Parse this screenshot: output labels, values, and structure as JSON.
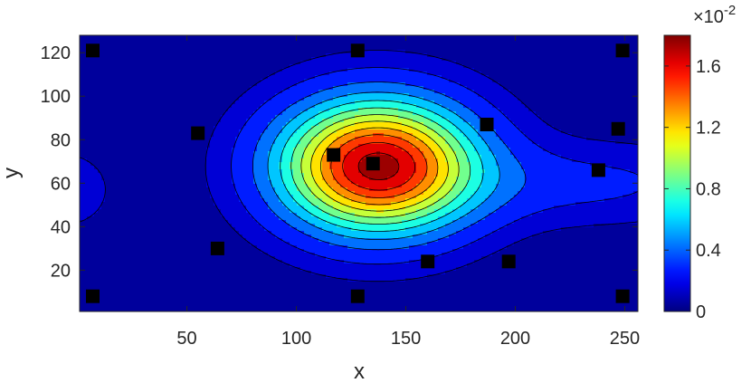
{
  "chart_data": {
    "type": "heatmap",
    "subtype": "filled-contour",
    "xlabel": "x",
    "ylabel": "y",
    "xlim": [
      1,
      256
    ],
    "ylim": [
      1,
      128
    ],
    "xticks": [
      50,
      100,
      150,
      200,
      250
    ],
    "yticks": [
      20,
      40,
      60,
      80,
      100,
      120
    ],
    "colormap": "jet",
    "colorbar": {
      "range": [
        0,
        1.8
      ],
      "ticks": [
        0,
        0.4,
        0.8,
        1.2,
        1.6
      ],
      "tick_labels": [
        "0",
        "0.4",
        "0.8",
        "1.2",
        "1.6"
      ],
      "multiplier_label": "×10",
      "multiplier_exponent": "-2"
    },
    "contour_levels": [
      0.1,
      0.2,
      0.35,
      0.5,
      0.65,
      0.8,
      0.95,
      1.1,
      1.25,
      1.4,
      1.55,
      1.7
    ],
    "field_components": [
      {
        "cx": 137,
        "cy": 68,
        "sx": 31,
        "sy": 21,
        "amp": 1.72
      },
      {
        "cx": 232,
        "cy": 60,
        "sx": 48,
        "sy": 13,
        "amp": 0.2
      },
      {
        "cx": -6,
        "cy": 57,
        "sx": 14,
        "sy": 12,
        "amp": 0.17
      }
    ],
    "background_level": 0.03,
    "markers": [
      {
        "x": 7,
        "y": 121
      },
      {
        "x": 128,
        "y": 121
      },
      {
        "x": 249,
        "y": 121
      },
      {
        "x": 55,
        "y": 83
      },
      {
        "x": 117,
        "y": 73
      },
      {
        "x": 135,
        "y": 69
      },
      {
        "x": 187,
        "y": 87
      },
      {
        "x": 247,
        "y": 85
      },
      {
        "x": 238,
        "y": 66
      },
      {
        "x": 64,
        "y": 30
      },
      {
        "x": 160,
        "y": 24
      },
      {
        "x": 197,
        "y": 24
      },
      {
        "x": 7,
        "y": 8
      },
      {
        "x": 128,
        "y": 8
      },
      {
        "x": 249,
        "y": 8
      }
    ],
    "marker_color": "#000000",
    "contour_line_color": "#000000"
  }
}
